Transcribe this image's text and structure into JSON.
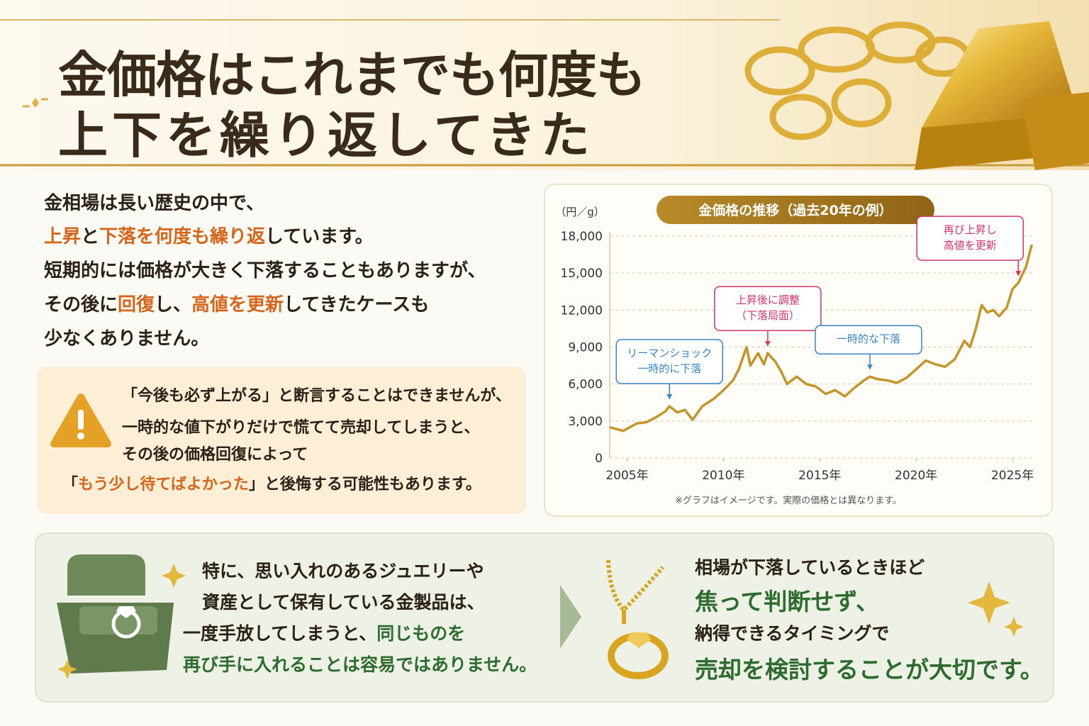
{
  "header": {
    "title_lines": [
      "金価格はこれまでも何度も",
      "上下を繰り返してきた"
    ]
  },
  "intro": {
    "lines": [
      [
        "金相場は長い歴史の中で、"
      ],
      [
        {
          "text": "上昇",
          "color": "#d4651a"
        },
        "と",
        {
          "text": "下落を何度も繰り返",
          "color": "#d4651a"
        },
        "しています。"
      ],
      [
        "短期的には価格が大きく下落することもありますが、"
      ],
      [
        "その後に",
        {
          "text": "回復",
          "color": "#d4651a"
        },
        "し、",
        {
          "text": "高値を更新",
          "color": "#d4651a"
        },
        "してきたケースも"
      ],
      [
        "少なくありません。"
      ]
    ]
  },
  "notice": {
    "lines": [
      [
        "「今後も必ず上がる」と断言することはできませんが、"
      ],
      [
        "一時的な値下がりだけで慌てて売却してしまうと、"
      ],
      [
        "その後の価格回復によって"
      ],
      [
        "「",
        {
          "text": "もう少し待てばよかった",
          "color": "#d4651a"
        },
        "」と後悔する可能性もあります。"
      ]
    ]
  },
  "chart_data": {
    "type": "line",
    "title": "金価格の推移（過去20年の例）",
    "y_unit": "（円／g）",
    "note": "※グラフはイメージです。実際の価格とは異なります。",
    "color": "#c4962a",
    "grid": true,
    "xlim": [
      2004.1,
      2026.1
    ],
    "ylim": [
      0,
      18000
    ],
    "xticks": [
      {
        "value": 2005,
        "label": "2005年"
      },
      {
        "value": 2010,
        "label": "2010年"
      },
      {
        "value": 2015,
        "label": "2015年"
      },
      {
        "value": 2020,
        "label": "2020年"
      },
      {
        "value": 2025,
        "label": "2025年"
      }
    ],
    "yticks": [
      0,
      {
        "value": 3000,
        "label": "3,000"
      },
      {
        "value": 6000,
        "label": "6,000"
      },
      {
        "value": 9000,
        "label": "9,000"
      },
      {
        "value": 12000,
        "label": "12,000"
      },
      {
        "value": 15000,
        "label": "15,000"
      },
      {
        "value": 18000,
        "label": "18,000"
      }
    ],
    "x": [
      2004.1,
      2004.8,
      2005.5,
      2006.0,
      2006.5,
      2007.0,
      2007.2,
      2007.6,
      2008.0,
      2008.4,
      2008.9,
      2009.5,
      2010.0,
      2010.5,
      2010.8,
      2011.0,
      2011.2,
      2011.4,
      2011.8,
      2012.1,
      2012.3,
      2012.7,
      2013.0,
      2013.3,
      2013.8,
      2014.3,
      2014.8,
      2015.3,
      2015.8,
      2016.3,
      2016.8,
      2017.3,
      2017.6,
      2018.0,
      2018.5,
      2019.0,
      2019.5,
      2020.0,
      2020.5,
      2021.0,
      2021.5,
      2022.0,
      2022.5,
      2022.8,
      2023.1,
      2023.4,
      2023.7,
      2024.0,
      2024.3,
      2024.7,
      2025.0,
      2025.3,
      2025.7,
      2026.0
    ],
    "values": [
      2500,
      2200,
      2800,
      2900,
      3300,
      3800,
      4200,
      3700,
      3900,
      3100,
      4200,
      4800,
      5500,
      6300,
      7200,
      8100,
      9000,
      7500,
      8500,
      7600,
      8500,
      7800,
      7000,
      6000,
      6600,
      6000,
      5800,
      5200,
      5500,
      5000,
      5700,
      6300,
      6600,
      6400,
      6300,
      6100,
      6500,
      7200,
      7900,
      7600,
      7400,
      8000,
      9500,
      9000,
      10500,
      12400,
      11800,
      12000,
      11500,
      12200,
      13700,
      14200,
      15500,
      17300
    ],
    "annotations": [
      {
        "lines": [
          "リーマンショック",
          "一時的に下落"
        ],
        "x": 2007.2,
        "color": "#3a86c8"
      },
      {
        "lines": [
          "上昇後に調整",
          "（下落局面）"
        ],
        "x": 2012.3,
        "color": "#d6336c"
      },
      {
        "lines": [
          "一時的な下落"
        ],
        "x": 2017.6,
        "color": "#3a86c8"
      },
      {
        "lines": [
          "再び上昇し",
          "高値を更新"
        ],
        "x": 2025.3,
        "color": "#d6336c"
      }
    ]
  },
  "closing": {
    "left_lines": [
      [
        "特に、思い入れのあるジュエリーや"
      ],
      [
        "資産として保有している金製品は、"
      ],
      [
        "一度手放してしまうと、",
        {
          "text": "同じものを",
          "color": "#2e6b2e"
        }
      ],
      [
        {
          "text": "再び手に入れることは容易ではありません。",
          "color": "#2e6b2e"
        }
      ]
    ],
    "right_lines": [
      [
        "相場が下落しているときほど"
      ],
      [
        {
          "text": "焦って判断せず、",
          "color": "#2e6b2e"
        }
      ],
      [
        "納得できるタイミングで"
      ],
      [
        {
          "text": "売却を検討することが大切です。",
          "color": "#2e6b2e"
        }
      ]
    ]
  }
}
